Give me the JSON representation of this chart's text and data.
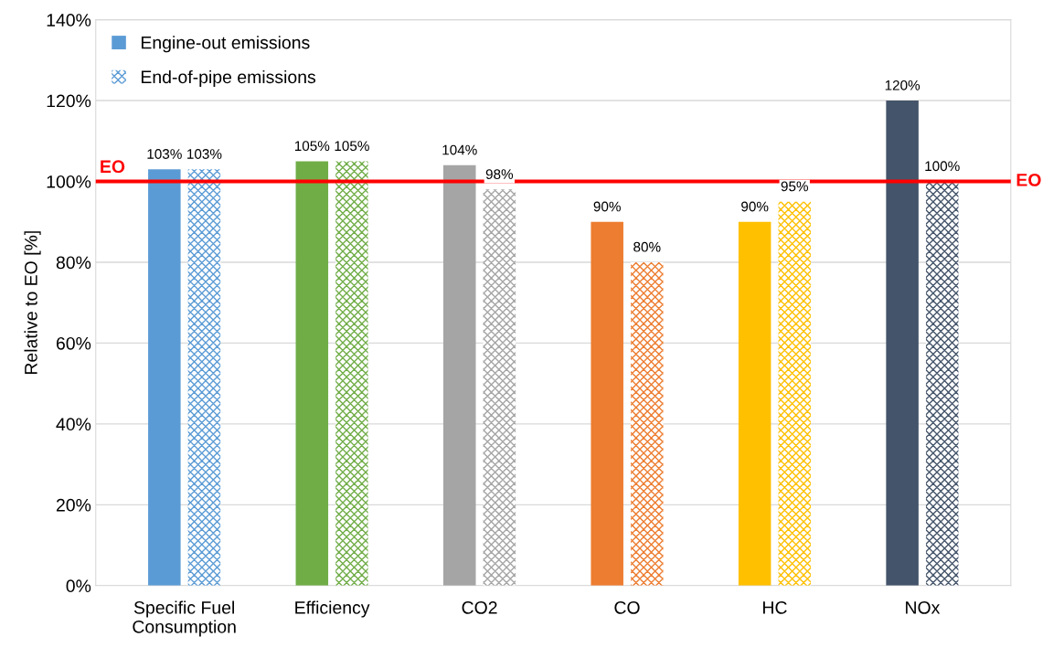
{
  "chart_data": {
    "type": "bar",
    "ylabel": "Relative to EO [%]",
    "categories": [
      "Specific Fuel\nConsumption",
      "Efficiency",
      "CO2",
      "CO",
      "HC",
      "NOx"
    ],
    "series": [
      {
        "name": "Engine-out emissions",
        "colors": [
          "#5b9bd5",
          "#70ad47",
          "#a5a5a5",
          "#ed7d31",
          "#ffc000",
          "#44546a"
        ],
        "values": [
          103,
          105,
          104,
          90,
          90,
          120
        ],
        "value_labels": [
          "103%",
          "105%",
          "104%",
          "90%",
          "90%",
          "120%"
        ]
      },
      {
        "name": "End-of-pipe emissions",
        "colors": [
          "#5b9bd5",
          "#70ad47",
          "#a5a5a5",
          "#ed7d31",
          "#ffc000",
          "#44546a"
        ],
        "values": [
          103,
          105,
          98,
          80,
          95,
          100
        ],
        "value_labels": [
          "103%",
          "105%",
          "98%",
          "80%",
          "95%",
          "100%"
        ]
      }
    ],
    "ylim": [
      0,
      140
    ],
    "yticks": [
      {
        "value": 0,
        "label": "0%"
      },
      {
        "value": 20,
        "label": "20%"
      },
      {
        "value": 40,
        "label": "40%"
      },
      {
        "value": 60,
        "label": "60%"
      },
      {
        "value": 80,
        "label": "80%"
      },
      {
        "value": 100,
        "label": "100%"
      },
      {
        "value": 120,
        "label": "120%"
      },
      {
        "value": 140,
        "label": "140%"
      }
    ],
    "ref_lines": [
      {
        "axis": "y",
        "value": 100,
        "label": "EO",
        "color": "#ff0000"
      }
    ],
    "grid": "y",
    "legend": "top left"
  }
}
